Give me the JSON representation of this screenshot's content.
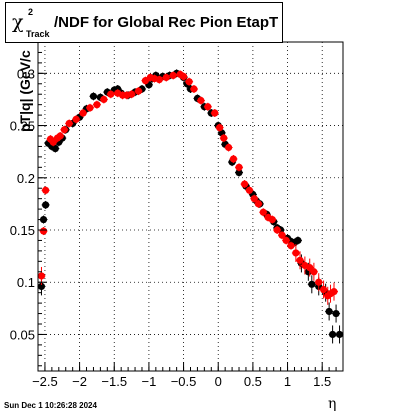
{
  "title": {
    "chi_symbol": "χ",
    "superscript": "2",
    "subscript": "Track",
    "text": "/NDF for Global Rec Pion EtapT"
  },
  "timestamp": "Sun Dec  1 10:26:28 2024",
  "chart_data": {
    "type": "scatter",
    "xlabel": "η",
    "ylabel": "pT|q| (GeV/c",
    "xlim": [
      -2.6,
      1.8
    ],
    "ylim": [
      0.015,
      0.33
    ],
    "x_ticks": [
      -2.5,
      -2,
      -1.5,
      -1,
      -0.5,
      0,
      0.5,
      1,
      1.5
    ],
    "x_tick_labels": [
      "−2.5",
      "−2",
      "−1.5",
      "−1",
      "−0.5",
      "0",
      "0.5",
      "1",
      "1.5"
    ],
    "y_ticks": [
      0.05,
      0.1,
      0.15,
      0.2,
      0.25,
      0.3
    ],
    "y_tick_labels": [
      "0.05",
      "0.1",
      "0.15",
      "0.2",
      "0.25",
      "0.3"
    ],
    "grid": true,
    "series": [
      {
        "color": "#000000",
        "points": [
          [
            -2.55,
            0.096
          ],
          [
            -2.52,
            0.16
          ],
          [
            -2.49,
            0.174
          ],
          [
            -2.45,
            0.233
          ],
          [
            -2.4,
            0.23
          ],
          [
            -2.35,
            0.228
          ],
          [
            -2.3,
            0.234
          ],
          [
            -2.25,
            0.238
          ],
          [
            -2.2,
            0.246
          ],
          [
            -2.1,
            0.252
          ],
          [
            -2.0,
            0.258
          ],
          [
            -1.9,
            0.266
          ],
          [
            -1.8,
            0.278
          ],
          [
            -1.7,
            0.277
          ],
          [
            -1.6,
            0.282
          ],
          [
            -1.5,
            0.284
          ],
          [
            -1.45,
            0.285
          ],
          [
            -1.4,
            0.281
          ],
          [
            -1.3,
            0.279
          ],
          [
            -1.2,
            0.282
          ],
          [
            -1.1,
            0.285
          ],
          [
            -1.0,
            0.289
          ],
          [
            -0.95,
            0.295
          ],
          [
            -0.9,
            0.298
          ],
          [
            -0.8,
            0.297
          ],
          [
            -0.7,
            0.298
          ],
          [
            -0.6,
            0.3
          ],
          [
            -0.5,
            0.296
          ],
          [
            -0.45,
            0.29
          ],
          [
            -0.4,
            0.285
          ],
          [
            -0.3,
            0.276
          ],
          [
            -0.2,
            0.268
          ],
          [
            -0.1,
            0.262
          ],
          [
            0.0,
            0.25
          ],
          [
            0.05,
            0.243
          ],
          [
            0.1,
            0.232
          ],
          [
            0.2,
            0.215
          ],
          [
            0.3,
            0.205
          ],
          [
            0.4,
            0.192
          ],
          [
            0.5,
            0.184
          ],
          [
            0.55,
            0.178
          ],
          [
            0.6,
            0.175
          ],
          [
            0.7,
            0.165
          ],
          [
            0.8,
            0.158
          ],
          [
            0.85,
            0.152
          ],
          [
            0.9,
            0.15
          ],
          [
            1.0,
            0.142
          ],
          [
            1.05,
            0.139
          ],
          [
            1.1,
            0.138
          ],
          [
            1.15,
            0.14
          ],
          [
            1.2,
            0.118
          ],
          [
            1.3,
            0.11
          ],
          [
            1.35,
            0.098
          ],
          [
            1.45,
            0.096
          ],
          [
            1.55,
            0.09
          ],
          [
            1.6,
            0.072
          ],
          [
            1.65,
            0.05
          ],
          [
            1.7,
            0.07
          ],
          [
            1.75,
            0.05
          ]
        ]
      },
      {
        "color": "#ff0000",
        "points": [
          [
            -2.55,
            0.106
          ],
          [
            -2.52,
            0.149
          ],
          [
            -2.49,
            0.188
          ],
          [
            -2.42,
            0.237
          ],
          [
            -2.38,
            0.234
          ],
          [
            -2.32,
            0.238
          ],
          [
            -2.28,
            0.24
          ],
          [
            -2.22,
            0.246
          ],
          [
            -2.15,
            0.252
          ],
          [
            -2.05,
            0.256
          ],
          [
            -1.95,
            0.262
          ],
          [
            -1.85,
            0.267
          ],
          [
            -1.75,
            0.27
          ],
          [
            -1.65,
            0.275
          ],
          [
            -1.55,
            0.28
          ],
          [
            -1.45,
            0.281
          ],
          [
            -1.38,
            0.279
          ],
          [
            -1.32,
            0.279
          ],
          [
            -1.25,
            0.28
          ],
          [
            -1.15,
            0.283
          ],
          [
            -1.05,
            0.293
          ],
          [
            -0.98,
            0.296
          ],
          [
            -0.92,
            0.295
          ],
          [
            -0.85,
            0.294
          ],
          [
            -0.75,
            0.296
          ],
          [
            -0.65,
            0.298
          ],
          [
            -0.55,
            0.299
          ],
          [
            -0.5,
            0.297
          ],
          [
            -0.42,
            0.292
          ],
          [
            -0.35,
            0.285
          ],
          [
            -0.25,
            0.274
          ],
          [
            -0.15,
            0.268
          ],
          [
            -0.05,
            0.262
          ],
          [
            0.02,
            0.248
          ],
          [
            0.08,
            0.238
          ],
          [
            0.15,
            0.229
          ],
          [
            0.22,
            0.218
          ],
          [
            0.3,
            0.21
          ],
          [
            0.38,
            0.194
          ],
          [
            0.45,
            0.188
          ],
          [
            0.52,
            0.18
          ],
          [
            0.58,
            0.175
          ],
          [
            0.65,
            0.167
          ],
          [
            0.72,
            0.162
          ],
          [
            0.78,
            0.16
          ],
          [
            0.85,
            0.15
          ],
          [
            0.92,
            0.145
          ],
          [
            0.98,
            0.14
          ],
          [
            1.05,
            0.135
          ],
          [
            1.12,
            0.128
          ],
          [
            1.18,
            0.121
          ],
          [
            1.25,
            0.116
          ],
          [
            1.32,
            0.114
          ],
          [
            1.38,
            0.11
          ],
          [
            1.45,
            0.1
          ],
          [
            1.52,
            0.093
          ],
          [
            1.58,
            0.087
          ],
          [
            1.62,
            0.089
          ],
          [
            1.67,
            0.091
          ]
        ]
      }
    ]
  }
}
